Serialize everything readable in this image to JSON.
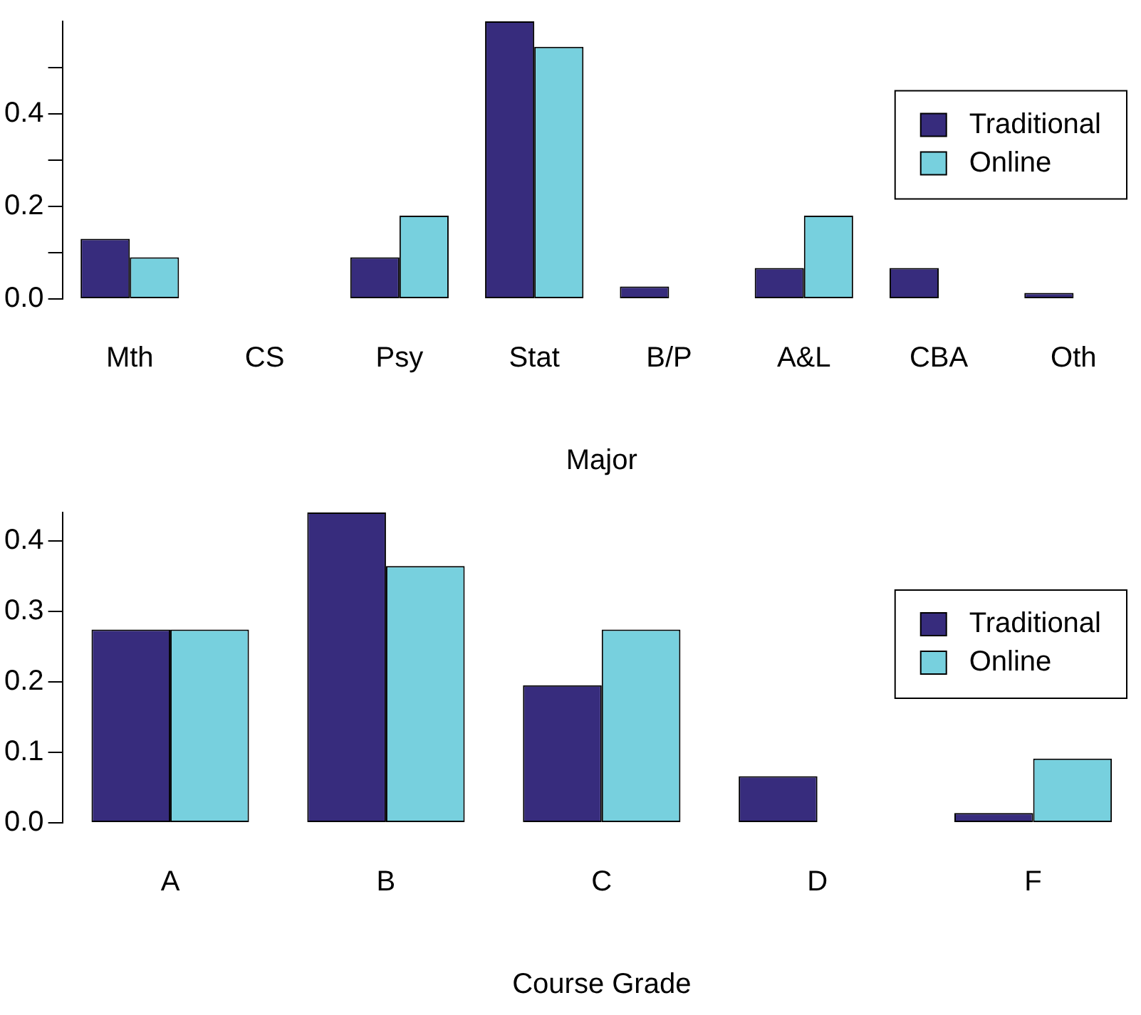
{
  "chart_data": [
    {
      "type": "bar",
      "xlabel": "Major",
      "categories": [
        "Mth",
        "CS",
        "Psy",
        "Stat",
        "B/P",
        "A&L",
        "CBA",
        "Oth"
      ],
      "series": [
        {
          "name": "Traditional",
          "color": "#372c7d",
          "values": [
            0.13,
            0,
            0.09,
            0.6,
            0.027,
            0.067,
            0.067,
            0.013
          ]
        },
        {
          "name": "Online",
          "color": "#77d0de",
          "values": [
            0.09,
            0,
            0.18,
            0.545,
            0,
            0.18,
            0,
            0
          ]
        }
      ],
      "ylim": [
        0,
        0.6
      ],
      "yticks": [
        {
          "value": 0,
          "label": "0.0"
        },
        {
          "value": 0.1,
          "label": null
        },
        0.2,
        {
          "value": 0.3,
          "label": null
        },
        0.4,
        {
          "value": 0.5,
          "label": null
        }
      ],
      "grid": false,
      "legend": "top right"
    },
    {
      "type": "bar",
      "xlabel": "Course Grade",
      "categories": [
        "A",
        "B",
        "C",
        "D",
        "F"
      ],
      "series": [
        {
          "name": "Traditional",
          "color": "#372c7d",
          "values": [
            0.274,
            0.44,
            0.195,
            0.066,
            0.014
          ]
        },
        {
          "name": "Online",
          "color": "#77d0de",
          "values": [
            0.274,
            0.364,
            0.274,
            0,
            0.091
          ]
        }
      ],
      "ylim": [
        0,
        0.44
      ],
      "yticks": [
        {
          "value": 0,
          "label": "0.0"
        },
        0.1,
        0.2,
        0.3,
        0.4
      ],
      "grid": false,
      "legend": "top right"
    }
  ]
}
